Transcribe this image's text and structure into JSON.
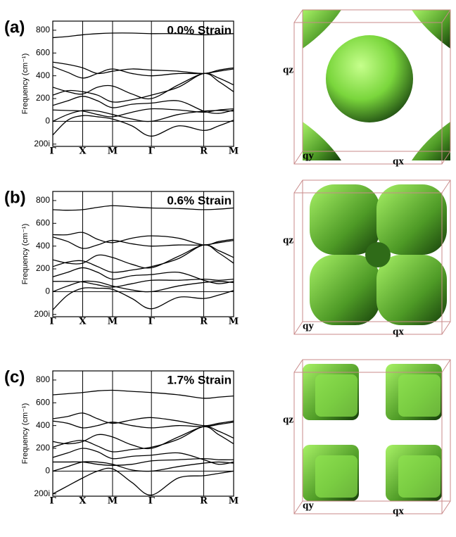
{
  "chart_data": [
    {
      "type": "line",
      "panel_label": "(a)",
      "annotation": "0.0% Strain",
      "ylabel": "Frequency (cm⁻¹)",
      "color": "#000000",
      "x": [
        0,
        0.5,
        1,
        1.5,
        2,
        2.65,
        3.3,
        4.2,
        5.05,
        5.55,
        6.05
      ],
      "xlim": [
        0,
        6.05
      ],
      "xticks": [
        {
          "value": 0,
          "label": "Γ"
        },
        {
          "value": 1,
          "label": "X"
        },
        {
          "value": 2,
          "label": "M"
        },
        {
          "value": 3.3,
          "label": "Γ"
        },
        {
          "value": 5.05,
          "label": "R"
        },
        {
          "value": 6.05,
          "label": "M"
        }
      ],
      "ylim": [
        -220,
        880
      ],
      "yticks": [
        {
          "value": -200,
          "label": "200i"
        },
        0,
        200,
        400,
        600,
        800
      ],
      "series": [
        {
          "values": [
            735,
            745,
            760,
            770,
            775,
            775,
            770,
            770,
            760,
            765,
            770
          ]
        },
        {
          "values": [
            520,
            500,
            470,
            420,
            440,
            460,
            450,
            440,
            420,
            450,
            470
          ]
        },
        {
          "values": [
            480,
            430,
            380,
            420,
            460,
            420,
            400,
            420,
            420,
            440,
            460
          ]
        },
        {
          "values": [
            300,
            260,
            240,
            300,
            310,
            240,
            200,
            320,
            420,
            380,
            320
          ]
        },
        {
          "values": [
            230,
            270,
            260,
            230,
            170,
            190,
            230,
            300,
            420,
            350,
            260
          ]
        },
        {
          "values": [
            140,
            180,
            220,
            180,
            120,
            150,
            160,
            180,
            90,
            70,
            100
          ]
        },
        {
          "values": [
            100,
            95,
            90,
            60,
            40,
            80,
            110,
            100,
            80,
            100,
            110
          ]
        },
        {
          "values": [
            0,
            60,
            95,
            90,
            60,
            20,
            0,
            60,
            90,
            95,
            90
          ]
        },
        {
          "values": [
            -120,
            10,
            50,
            40,
            20,
            -40,
            -130,
            -40,
            -80,
            -40,
            10
          ]
        }
      ],
      "isosurface_labels": {
        "qz": "qz",
        "qy": "qy",
        "qx": "qx"
      }
    },
    {
      "type": "line",
      "panel_label": "(b)",
      "annotation": "0.6% Strain",
      "ylabel": "Frequency (cm⁻¹)",
      "color": "#000000",
      "x": [
        0,
        0.5,
        1,
        1.5,
        2,
        2.65,
        3.3,
        4.2,
        5.05,
        5.55,
        6.05
      ],
      "xlim": [
        0,
        6.05
      ],
      "xticks": [
        {
          "value": 0,
          "label": "Γ"
        },
        {
          "value": 1,
          "label": "X"
        },
        {
          "value": 2,
          "label": "M"
        },
        {
          "value": 3.3,
          "label": "Γ"
        },
        {
          "value": 5.05,
          "label": "R"
        },
        {
          "value": 6.05,
          "label": "M"
        }
      ],
      "ylim": [
        -220,
        880
      ],
      "yticks": [
        {
          "value": -200,
          "label": "200i"
        },
        0,
        200,
        400,
        600,
        800
      ],
      "series": [
        {
          "values": [
            720,
            715,
            720,
            740,
            755,
            745,
            735,
            730,
            720,
            725,
            735
          ]
        },
        {
          "values": [
            500,
            500,
            520,
            460,
            430,
            470,
            490,
            470,
            410,
            440,
            460
          ]
        },
        {
          "values": [
            480,
            440,
            380,
            410,
            450,
            420,
            400,
            410,
            410,
            430,
            450
          ]
        },
        {
          "values": [
            280,
            250,
            250,
            320,
            300,
            240,
            210,
            310,
            410,
            360,
            300
          ]
        },
        {
          "values": [
            220,
            260,
            270,
            220,
            170,
            190,
            220,
            290,
            410,
            340,
            250
          ]
        },
        {
          "values": [
            130,
            170,
            210,
            170,
            110,
            140,
            150,
            170,
            100,
            70,
            90
          ]
        },
        {
          "values": [
            90,
            90,
            85,
            60,
            40,
            70,
            100,
            100,
            110,
            100,
            110
          ]
        },
        {
          "values": [
            0,
            50,
            90,
            85,
            50,
            15,
            0,
            50,
            80,
            90,
            80
          ]
        },
        {
          "values": [
            -160,
            -30,
            30,
            30,
            20,
            -60,
            -150,
            -50,
            -60,
            -30,
            10
          ]
        }
      ],
      "isosurface_labels": {
        "qz": "qz",
        "qy": "qy",
        "qx": "qx"
      }
    },
    {
      "type": "line",
      "panel_label": "(c)",
      "annotation": "1.7% Strain",
      "ylabel": "Frequency (cm⁻¹)",
      "color": "#000000",
      "x": [
        0,
        0.5,
        1,
        1.5,
        2,
        2.65,
        3.3,
        4.2,
        5.05,
        5.55,
        6.05
      ],
      "xlim": [
        0,
        6.05
      ],
      "xticks": [
        {
          "value": 0,
          "label": "Γ"
        },
        {
          "value": 1,
          "label": "X"
        },
        {
          "value": 2,
          "label": "M"
        },
        {
          "value": 3.3,
          "label": "Γ"
        },
        {
          "value": 5.05,
          "label": "R"
        },
        {
          "value": 6.05,
          "label": "M"
        }
      ],
      "ylim": [
        -220,
        880
      ],
      "yticks": [
        {
          "value": -200,
          "label": "200i"
        },
        0,
        200,
        400,
        600,
        800
      ],
      "series": [
        {
          "values": [
            670,
            680,
            690,
            705,
            710,
            700,
            690,
            670,
            640,
            650,
            660
          ]
        },
        {
          "values": [
            460,
            480,
            510,
            460,
            420,
            450,
            470,
            440,
            400,
            420,
            440
          ]
        },
        {
          "values": [
            440,
            420,
            380,
            400,
            430,
            400,
            380,
            400,
            390,
            410,
            430
          ]
        },
        {
          "values": [
            260,
            240,
            260,
            320,
            300,
            230,
            200,
            300,
            390,
            350,
            290
          ]
        },
        {
          "values": [
            210,
            250,
            270,
            220,
            170,
            190,
            210,
            280,
            390,
            320,
            240
          ]
        },
        {
          "values": [
            120,
            160,
            200,
            170,
            110,
            130,
            140,
            160,
            100,
            60,
            80
          ]
        },
        {
          "values": [
            80,
            80,
            80,
            60,
            50,
            60,
            90,
            100,
            110,
            100,
            100
          ]
        },
        {
          "values": [
            0,
            40,
            80,
            80,
            60,
            10,
            0,
            40,
            70,
            80,
            70
          ]
        },
        {
          "values": [
            -200,
            -130,
            -60,
            0,
            20,
            -100,
            -210,
            -60,
            -40,
            -20,
            0
          ]
        }
      ],
      "isosurface_labels": {
        "qz": "qz",
        "qy": "qy",
        "qx": "qx"
      }
    }
  ]
}
